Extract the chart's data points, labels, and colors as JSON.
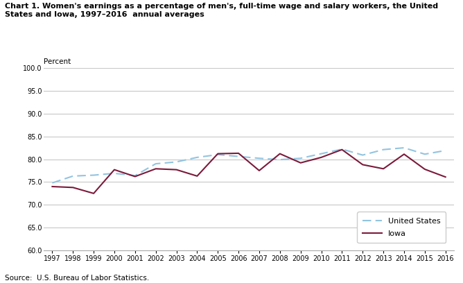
{
  "title_line1": "Chart 1. Women's earnings as a percentage of men's, full-time wage and salary workers, the United",
  "title_line2": "States and Iowa, 1997–2016  annual averages",
  "ylabel": "Percent",
  "source": "Source:  U.S. Bureau of Labor Statistics.",
  "years": [
    1997,
    1998,
    1999,
    2000,
    2001,
    2002,
    2003,
    2004,
    2005,
    2006,
    2007,
    2008,
    2009,
    2010,
    2011,
    2012,
    2013,
    2014,
    2015,
    2016
  ],
  "us_data": [
    74.8,
    76.3,
    76.5,
    76.9,
    76.4,
    79.0,
    79.4,
    80.4,
    81.0,
    80.6,
    80.2,
    79.9,
    80.2,
    81.2,
    82.2,
    80.9,
    82.1,
    82.5,
    81.1,
    81.9
  ],
  "iowa_data": [
    74.0,
    73.8,
    72.5,
    77.7,
    76.2,
    77.9,
    77.7,
    76.3,
    81.2,
    81.3,
    77.5,
    81.2,
    79.2,
    80.4,
    82.1,
    78.8,
    77.9,
    81.1,
    77.8,
    76.1
  ],
  "us_color": "#92c4e0",
  "iowa_color": "#7b1a3b",
  "ylim": [
    60.0,
    100.0
  ],
  "yticks": [
    60.0,
    65.0,
    70.0,
    75.0,
    80.0,
    85.0,
    90.0,
    95.0,
    100.0
  ],
  "background_color": "#ffffff",
  "grid_color": "#c8c8c8"
}
